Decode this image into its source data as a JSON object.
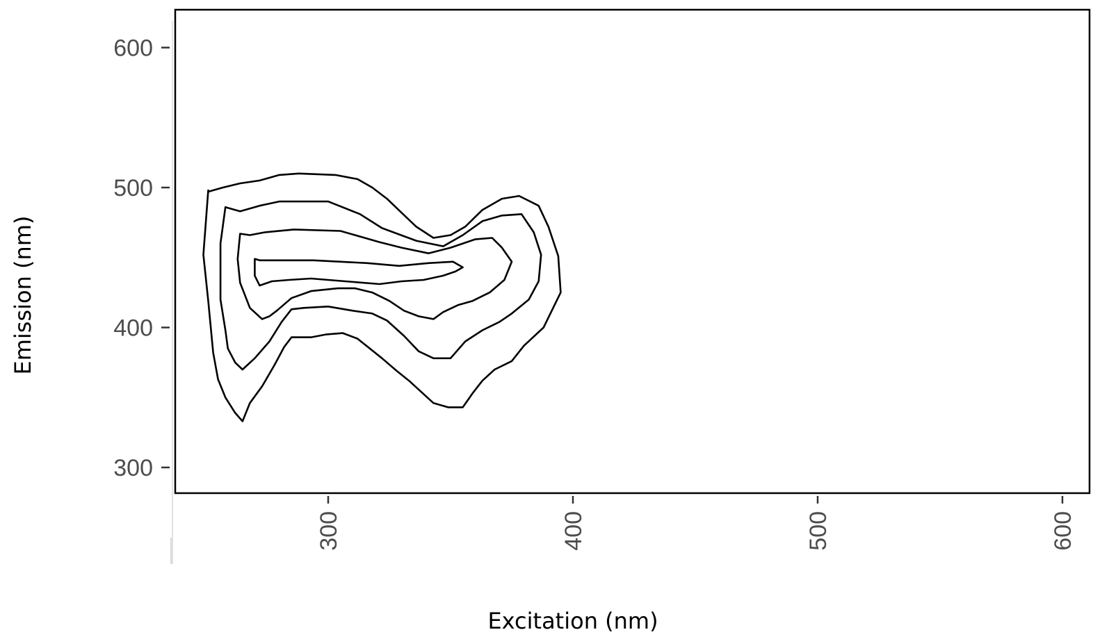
{
  "chart_data": {
    "type": "contour",
    "title": "",
    "xlabel": "Excitation (nm)",
    "ylabel": "Emission (nm)",
    "xlim": [
      238,
      613
    ],
    "ylim": [
      282,
      628
    ],
    "x_ticks": [
      300,
      400,
      500,
      600
    ],
    "y_ticks": [
      300,
      400,
      500,
      600
    ],
    "x_tick_labels": [
      "300",
      "400",
      "500",
      "600"
    ],
    "y_tick_labels": [
      "300",
      "400",
      "500",
      "600"
    ],
    "grid": false,
    "legend": "none",
    "contours": [
      {
        "level": 1,
        "points": [
          [
            251,
            498
          ],
          [
            251,
            497
          ],
          [
            257,
            500
          ],
          [
            264,
            503
          ],
          [
            272,
            505
          ],
          [
            280,
            509
          ],
          [
            288,
            510
          ],
          [
            303,
            509
          ],
          [
            312,
            506
          ],
          [
            318,
            500
          ],
          [
            324,
            492
          ],
          [
            330,
            482
          ],
          [
            336,
            472
          ],
          [
            343,
            464
          ],
          [
            350,
            466
          ],
          [
            356,
            472
          ],
          [
            363,
            484
          ],
          [
            371,
            492
          ],
          [
            378,
            494
          ],
          [
            386,
            487
          ],
          [
            390,
            472
          ],
          [
            394,
            451
          ],
          [
            395,
            425
          ],
          [
            388,
            400
          ],
          [
            380,
            387
          ],
          [
            375,
            376
          ],
          [
            368,
            370
          ],
          [
            363,
            362
          ],
          [
            359,
            353
          ],
          [
            355,
            343
          ],
          [
            349,
            343
          ],
          [
            343,
            346
          ],
          [
            338,
            354
          ],
          [
            333,
            362
          ],
          [
            328,
            369
          ],
          [
            322,
            378
          ],
          [
            317,
            385
          ],
          [
            312,
            392
          ],
          [
            306,
            396
          ],
          [
            299,
            395
          ],
          [
            293,
            393
          ],
          [
            285,
            393
          ],
          [
            282,
            386
          ],
          [
            278,
            373
          ],
          [
            273,
            358
          ],
          [
            268,
            346
          ],
          [
            265,
            333
          ],
          [
            262,
            339
          ],
          [
            258,
            350
          ],
          [
            255,
            363
          ],
          [
            253,
            382
          ],
          [
            251,
            419
          ],
          [
            249,
            452
          ],
          [
            251,
            498
          ]
        ]
      },
      {
        "level": 2,
        "points": [
          [
            258,
            486
          ],
          [
            264,
            483
          ],
          [
            272,
            487
          ],
          [
            280,
            490
          ],
          [
            300,
            490
          ],
          [
            313,
            481
          ],
          [
            322,
            471
          ],
          [
            336,
            462
          ],
          [
            347,
            458
          ],
          [
            355,
            466
          ],
          [
            363,
            476
          ],
          [
            371,
            480
          ],
          [
            379,
            481
          ],
          [
            384,
            468
          ],
          [
            387,
            452
          ],
          [
            386,
            433
          ],
          [
            382,
            420
          ],
          [
            375,
            410
          ],
          [
            370,
            404
          ],
          [
            363,
            398
          ],
          [
            356,
            390
          ],
          [
            350,
            378
          ],
          [
            343,
            378
          ],
          [
            337,
            383
          ],
          [
            331,
            394
          ],
          [
            324,
            405
          ],
          [
            318,
            410
          ],
          [
            310,
            412
          ],
          [
            300,
            415
          ],
          [
            290,
            414
          ],
          [
            285,
            413
          ],
          [
            281,
            404
          ],
          [
            276,
            390
          ],
          [
            270,
            378
          ],
          [
            265,
            370
          ],
          [
            262,
            375
          ],
          [
            259,
            385
          ],
          [
            258,
            398
          ],
          [
            256,
            420
          ],
          [
            256,
            460
          ],
          [
            258,
            486
          ]
        ]
      },
      {
        "level": 3,
        "points": [
          [
            264,
            467
          ],
          [
            268,
            466
          ],
          [
            274,
            468
          ],
          [
            286,
            470
          ],
          [
            305,
            469
          ],
          [
            321,
            461
          ],
          [
            330,
            457
          ],
          [
            341,
            453
          ],
          [
            350,
            457
          ],
          [
            360,
            463
          ],
          [
            367,
            464
          ],
          [
            371,
            457
          ],
          [
            375,
            447
          ],
          [
            372,
            434
          ],
          [
            366,
            425
          ],
          [
            359,
            419
          ],
          [
            353,
            416
          ],
          [
            347,
            411
          ],
          [
            343,
            406
          ],
          [
            337,
            408
          ],
          [
            331,
            412
          ],
          [
            325,
            419
          ],
          [
            318,
            425
          ],
          [
            311,
            428
          ],
          [
            304,
            428
          ],
          [
            293,
            426
          ],
          [
            285,
            421
          ],
          [
            279,
            412
          ],
          [
            276,
            408
          ],
          [
            273,
            406
          ],
          [
            268,
            414
          ],
          [
            264,
            432
          ],
          [
            263,
            449
          ],
          [
            264,
            467
          ]
        ]
      },
      {
        "level": 4,
        "points": [
          [
            270,
            449
          ],
          [
            272,
            448
          ],
          [
            280,
            448
          ],
          [
            294,
            448
          ],
          [
            316,
            446
          ],
          [
            329,
            444
          ],
          [
            341,
            446
          ],
          [
            351,
            447
          ],
          [
            355,
            443
          ],
          [
            352,
            440
          ],
          [
            347,
            437
          ],
          [
            339,
            434
          ],
          [
            330,
            433
          ],
          [
            321,
            431
          ],
          [
            307,
            433
          ],
          [
            293,
            435
          ],
          [
            284,
            434
          ],
          [
            277,
            433
          ],
          [
            272,
            430
          ],
          [
            270,
            437
          ],
          [
            270,
            449
          ]
        ]
      }
    ]
  }
}
